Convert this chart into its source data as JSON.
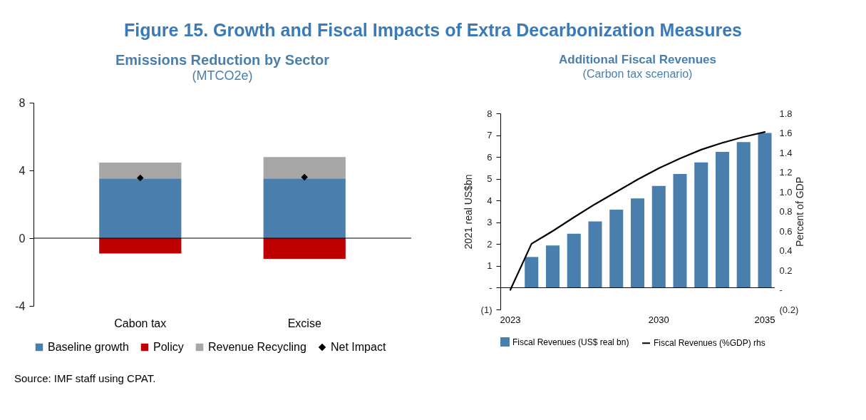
{
  "chart_data": [
    {
      "type": "other",
      "title": "Figure 15. Growth and Fiscal Impacts of Extra Decarbonization Measures"
    },
    {
      "type": "bar",
      "title": "Emissions Reduction by Sector",
      "subtitle": "(MTCO2e)",
      "categories": [
        "Cabon tax",
        "Excise"
      ],
      "stacked": true,
      "ylim": [
        -4,
        8
      ],
      "yticks": [
        -4,
        0,
        4,
        8
      ],
      "legend": "bottom",
      "ref_lines": [
        {
          "axis": "y",
          "value": 0
        }
      ],
      "annotations": [
        "Source: IMF staff using CPAT."
      ],
      "series": [
        {
          "name": "Baseline growth",
          "color": "#4a7fad",
          "values": [
            3.53,
            3.53
          ]
        },
        {
          "name": "Policy",
          "color": "#c00000",
          "values": [
            -0.9,
            -1.22
          ]
        },
        {
          "name": "Revenue Recycling",
          "color": "#a6a6a6",
          "values": [
            0.93,
            1.26
          ]
        },
        {
          "name": "Net Impact",
          "type": "scatter",
          "marker": "diamond",
          "color": "#000000",
          "values": [
            3.56,
            3.6
          ]
        }
      ]
    },
    {
      "type": "bar",
      "title": "Additional Fiscal Revenues",
      "subtitle": "(Carbon tax scenario)",
      "categories": [
        "2023",
        null,
        null,
        null,
        null,
        null,
        null,
        "2030",
        null,
        null,
        null,
        null,
        "2035"
      ],
      "ylabel": "2021 real US$bn",
      "y2label": "Percent of GDP",
      "ylim": [
        -1,
        8
      ],
      "yticks": [
        {
          "value": -1,
          "label": "(1)"
        },
        {
          "value": 0,
          "label": "-"
        },
        1,
        2,
        3,
        4,
        5,
        6,
        7,
        8
      ],
      "y2lim": [
        -0.2,
        1.8
      ],
      "y2ticks": [
        {
          "value": -0.2,
          "label": "(0.2)"
        },
        {
          "value": 0,
          "label": "-"
        },
        0.2,
        0.4,
        0.6,
        0.8,
        {
          "value": 1,
          "label": "1.0"
        },
        1.2,
        1.4,
        1.6,
        1.8
      ],
      "legend": "bottom",
      "ref_lines": [
        {
          "axis": "y",
          "value": 0
        }
      ],
      "series": [
        {
          "name": "Fiscal Revenues (US$ real bn)",
          "color": "#4a7fad",
          "values": [
            null,
            1.41,
            1.94,
            2.48,
            3.04,
            3.58,
            4.1,
            4.67,
            5.22,
            5.75,
            6.23,
            6.68,
            7.1
          ]
        },
        {
          "name": "Fiscal Revenues (%GDP) rhs",
          "type": "line",
          "axis": "y2",
          "color": "#000000",
          "values": [
            0,
            0.47,
            0.6,
            0.74,
            0.875,
            1.0,
            1.125,
            1.24,
            1.34,
            1.43,
            1.5,
            1.56,
            1.61
          ]
        }
      ]
    }
  ]
}
